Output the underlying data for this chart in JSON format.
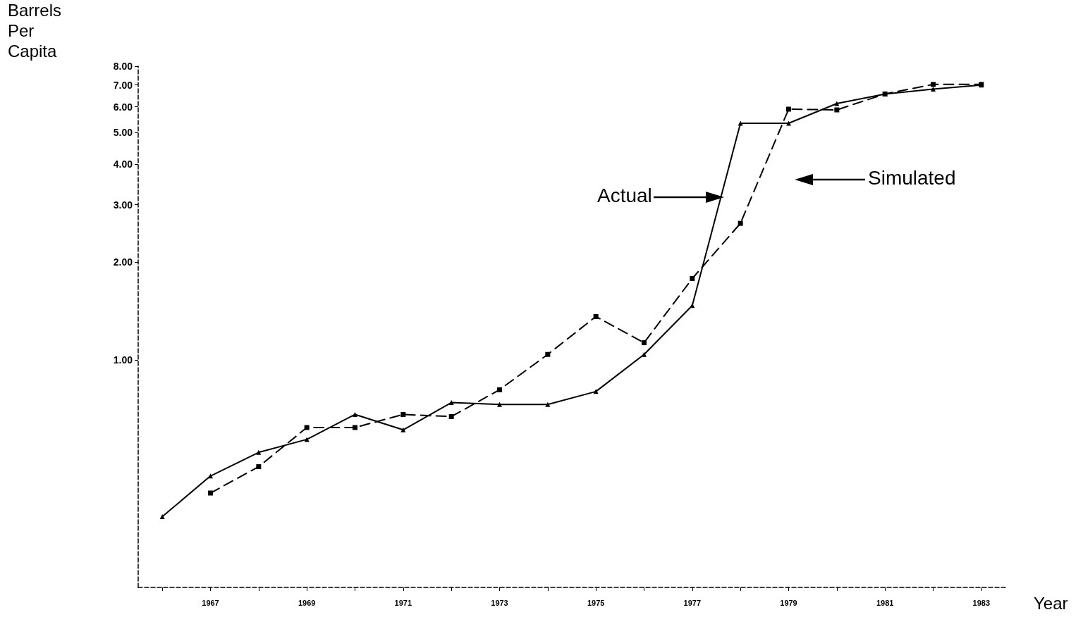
{
  "chart_data": {
    "type": "line",
    "xlabel": "Year",
    "ylabel": "Barrels Per Capita",
    "log": "y",
    "grid": false,
    "x": [
      1966,
      1967,
      1968,
      1969,
      1970,
      1971,
      1972,
      1973,
      1974,
      1975,
      1976,
      1977,
      1978,
      1979,
      1980,
      1981,
      1982,
      1983
    ],
    "xlim": [
      1965.5,
      1983.5
    ],
    "xticks": [
      {
        "value": 1966,
        "label": null
      },
      1967,
      {
        "value": 1968,
        "label": null
      },
      1969,
      {
        "value": 1970,
        "label": null
      },
      1971,
      {
        "value": 1972,
        "label": null
      },
      1973,
      {
        "value": 1974,
        "label": null
      },
      1975,
      {
        "value": 1976,
        "label": null
      },
      1977,
      {
        "value": 1978,
        "label": null
      },
      1979,
      {
        "value": 1980,
        "label": null
      },
      1981,
      {
        "value": 1982,
        "label": null
      },
      1983
    ],
    "ylim": [
      0.2,
      8
    ],
    "yticks": [
      {
        "value": 1,
        "label": "1.00"
      },
      {
        "value": 2,
        "label": "2.00"
      },
      {
        "value": 3,
        "label": "3.00"
      },
      {
        "value": 4,
        "label": "4.00"
      },
      {
        "value": 5,
        "label": "5.00"
      },
      {
        "value": 6,
        "label": "6.00"
      },
      {
        "value": 7,
        "label": "7.00"
      },
      {
        "value": 8,
        "label": "8.00"
      }
    ],
    "series": [
      {
        "color": "#000000",
        "marker": "triangle",
        "line_style": "solid",
        "values": [
          0.33,
          0.44,
          0.52,
          0.57,
          0.68,
          0.61,
          0.74,
          0.73,
          0.73,
          0.8,
          1.04,
          1.47,
          5.34,
          5.34,
          6.14,
          6.57,
          6.8,
          7.0
        ]
      },
      {
        "color": "#000000",
        "marker": "square",
        "line_style": "dashed",
        "values": [
          null,
          0.39,
          0.47,
          0.62,
          0.62,
          0.68,
          0.67,
          0.81,
          1.04,
          1.36,
          1.13,
          1.78,
          2.63,
          5.9,
          5.87,
          6.57,
          7.03,
          7.03
        ]
      }
    ],
    "annotations": [
      "Actual",
      "Simulated"
    ]
  }
}
